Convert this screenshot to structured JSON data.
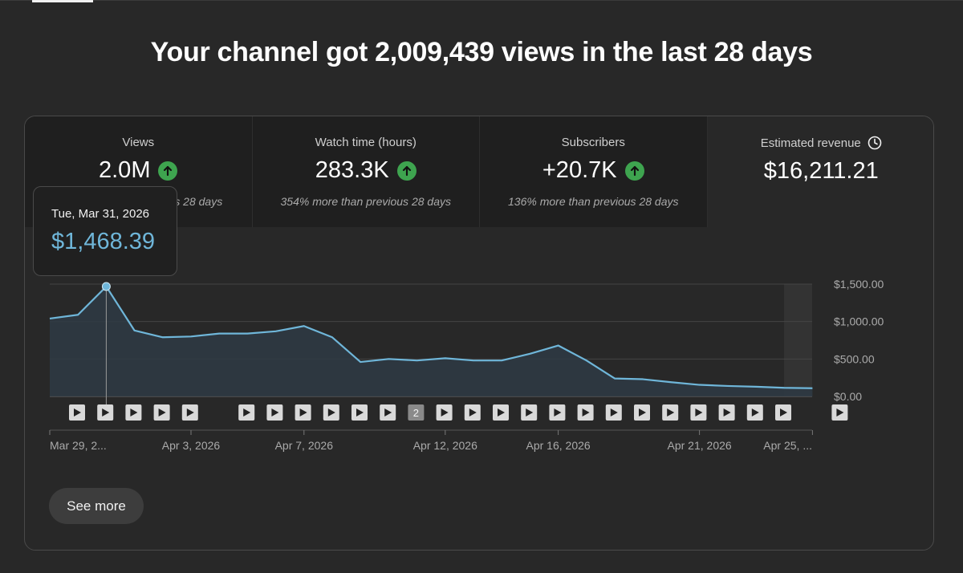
{
  "headline": "Your channel got 2,009,439 views in the last 28 days",
  "tiles": [
    {
      "label": "Views",
      "value": "2.0M",
      "sub": "s 28 days",
      "trend": "up"
    },
    {
      "label": "Watch time (hours)",
      "value": "283.3K",
      "sub": "354% more than previous 28 days",
      "trend": "up"
    },
    {
      "label": "Subscribers",
      "value": "+20.7K",
      "sub": "136% more than previous 28 days",
      "trend": "up"
    },
    {
      "label": "Estimated revenue",
      "value": "$16,211.21",
      "sub": "",
      "trend": "none",
      "icon": "clock-icon"
    }
  ],
  "tooltip": {
    "date": "Tue, Mar 31, 2026",
    "value": "$1,468.39"
  },
  "see_more_label": "See more",
  "colors": {
    "line": "#6fb6d9",
    "area": "#2e3a44",
    "up": "#3ea44f"
  },
  "chart_data": {
    "type": "area",
    "y_ticks": [
      "$1,500.00",
      "$1,000.00",
      "$500.00",
      "$0.00"
    ],
    "ylim": [
      0,
      1500
    ],
    "x_labels": [
      "Mar 29, 2...",
      "Apr 3, 2026",
      "Apr 7, 2026",
      "Apr 12, 2026",
      "Apr 16, 2026",
      "Apr 21, 2026",
      "Apr 25, ..."
    ],
    "x_label_days": [
      0,
      5,
      9,
      14,
      18,
      23,
      27
    ],
    "values": [
      1040,
      1090,
      1468,
      880,
      790,
      800,
      840,
      840,
      870,
      940,
      790,
      460,
      500,
      480,
      510,
      480,
      480,
      570,
      680,
      480,
      240,
      230,
      190,
      155,
      140,
      130,
      115,
      110
    ],
    "highlight_index": 2,
    "video_markers": [
      {
        "day": 1,
        "label": ""
      },
      {
        "day": 2,
        "label": ""
      },
      {
        "day": 3,
        "label": ""
      },
      {
        "day": 4,
        "label": ""
      },
      {
        "day": 5,
        "label": ""
      },
      {
        "day": 7,
        "label": ""
      },
      {
        "day": 8,
        "label": ""
      },
      {
        "day": 9,
        "label": ""
      },
      {
        "day": 10,
        "label": ""
      },
      {
        "day": 11,
        "label": ""
      },
      {
        "day": 12,
        "label": ""
      },
      {
        "day": 13,
        "label": "2"
      },
      {
        "day": 14,
        "label": ""
      },
      {
        "day": 15,
        "label": ""
      },
      {
        "day": 16,
        "label": ""
      },
      {
        "day": 17,
        "label": ""
      },
      {
        "day": 18,
        "label": ""
      },
      {
        "day": 19,
        "label": ""
      },
      {
        "day": 20,
        "label": ""
      },
      {
        "day": 21,
        "label": ""
      },
      {
        "day": 22,
        "label": ""
      },
      {
        "day": 23,
        "label": ""
      },
      {
        "day": 24,
        "label": ""
      },
      {
        "day": 25,
        "label": ""
      },
      {
        "day": 26,
        "label": ""
      },
      {
        "day": 28,
        "label": ""
      }
    ]
  }
}
